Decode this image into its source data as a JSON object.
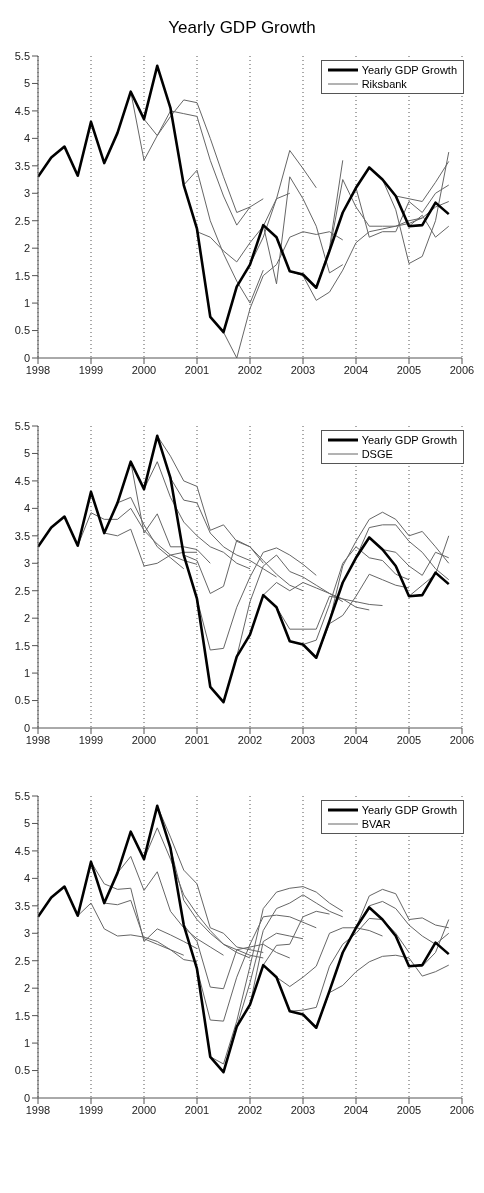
{
  "chart_data": [
    {
      "type": "line",
      "title": "Yearly GDP Growth",
      "xlim": [
        1998,
        2006
      ],
      "xticks": [
        1998,
        1999,
        2000,
        2001,
        2002,
        2003,
        2004,
        2005,
        2006
      ],
      "ylim": [
        0,
        5.5
      ],
      "yticks": [
        0,
        0.5,
        1,
        1.5,
        2,
        2.5,
        3,
        3.5,
        4,
        4.5,
        5,
        5.5
      ],
      "grid": "x",
      "legend": "top right",
      "series": [
        {
          "name": "Yearly GDP Growth",
          "color": "#000000",
          "x": [
            1998,
            1998.25,
            1998.5,
            1998.75,
            1999,
            1999.25,
            1999.5,
            1999.75,
            2000,
            2000.25,
            2000.5,
            2000.75,
            2001,
            2001.25,
            2001.5,
            2001.75,
            2002,
            2002.25,
            2002.5,
            2002.75,
            2003,
            2003.25,
            2003.5,
            2003.75,
            2004,
            2004.25,
            2004.5,
            2004.75,
            2005,
            2005.25,
            2005.5,
            2005.75
          ],
          "values": [
            3.3,
            3.65,
            3.85,
            3.32,
            4.3,
            3.55,
            4.1,
            4.85,
            4.35,
            5.32,
            4.55,
            3.15,
            2.35,
            0.75,
            0.47,
            1.3,
            1.7,
            2.42,
            2.2,
            1.58,
            1.52,
            1.28,
            1.95,
            2.65,
            3.1,
            3.47,
            3.25,
            2.95,
            2.4,
            2.42,
            2.83,
            2.62
          ]
        },
        {
          "name": "Riksbank",
          "color": "#666666",
          "x": [
            2000,
            2000.25,
            2000.5,
            2000.75,
            2001,
            2001.25,
            2001.5,
            2001.75,
            2002,
            2002.25
          ],
          "values": [
            4.35,
            4.05,
            4.4,
            4.7,
            4.65,
            4.0,
            3.3,
            2.65,
            2.75,
            2.9
          ]
        },
        {
          "color": "#666666",
          "x": [
            1999.75,
            2000,
            2000.25,
            2000.5,
            2000.75,
            2001,
            2001.25,
            2001.5,
            2001.75,
            2002
          ],
          "values": [
            4.85,
            3.6,
            4.05,
            4.5,
            4.45,
            4.4,
            3.6,
            2.95,
            2.42,
            2.75
          ]
        },
        {
          "color": "#666666",
          "x": [
            2000.75,
            2001,
            2001.25,
            2001.5,
            2001.75,
            2002,
            2002.25
          ],
          "values": [
            3.15,
            3.42,
            2.5,
            1.9,
            1.4,
            1.0,
            1.6
          ]
        },
        {
          "color": "#666666",
          "x": [
            2001,
            2001.25,
            2001.5,
            2001.75,
            2002,
            2002.25,
            2002.5,
            2002.75
          ],
          "values": [
            2.3,
            2.2,
            1.95,
            1.75,
            2.1,
            2.4,
            2.9,
            3.0
          ]
        },
        {
          "color": "#666666",
          "x": [
            2001.5,
            2001.75,
            2002,
            2002.25,
            2002.5,
            2002.75,
            2003,
            2003.25,
            2003.5,
            2003.75
          ],
          "values": [
            0.47,
            0.0,
            0.9,
            1.5,
            1.7,
            2.2,
            2.3,
            2.25,
            2.3,
            2.15
          ]
        },
        {
          "color": "#666666",
          "x": [
            2002,
            2002.25,
            2002.5,
            2002.75,
            2003,
            2003.25
          ],
          "values": [
            1.7,
            2.2,
            2.9,
            3.78,
            3.45,
            3.1
          ]
        },
        {
          "color": "#666666",
          "x": [
            2002.25,
            2002.5,
            2002.75,
            2003,
            2003.25,
            2003.5,
            2003.75
          ],
          "values": [
            2.42,
            1.35,
            3.3,
            2.9,
            2.4,
            1.55,
            1.7
          ]
        },
        {
          "color": "#666666",
          "x": [
            2002.75,
            2003,
            2003.25,
            2003.5,
            2003.75,
            2004,
            2004.25,
            2004.5,
            2004.75,
            2005,
            2005.25,
            2005.5,
            2005.75
          ],
          "values": [
            1.58,
            1.5,
            1.05,
            1.2,
            1.6,
            2.1,
            2.3,
            2.35,
            2.4,
            2.45,
            2.55,
            2.75,
            2.85
          ]
        },
        {
          "color": "#666666",
          "x": [
            2003.25,
            2003.5,
            2003.75
          ],
          "values": [
            1.28,
            2.0,
            3.6
          ]
        },
        {
          "color": "#666666",
          "x": [
            2003.5,
            2003.75,
            2004,
            2004.25,
            2004.5,
            2004.75,
            2005,
            2005.25
          ],
          "values": [
            1.95,
            3.25,
            2.75,
            2.4,
            2.4,
            2.4,
            2.5,
            2.55
          ]
        },
        {
          "color": "#666666",
          "x": [
            2004,
            2004.25,
            2004.5,
            2004.75,
            2005,
            2005.25,
            2005.5,
            2005.75
          ],
          "values": [
            3.1,
            2.2,
            2.3,
            2.3,
            2.85,
            2.65,
            3.0,
            3.15
          ]
        },
        {
          "color": "#666666",
          "x": [
            2004.5,
            2004.75,
            2005,
            2005.25,
            2005.5,
            2005.75
          ],
          "values": [
            3.25,
            2.7,
            1.72,
            1.85,
            2.5,
            3.75
          ]
        },
        {
          "color": "#666666",
          "x": [
            2004.75,
            2005,
            2005.25,
            2005.5,
            2005.75
          ],
          "values": [
            2.95,
            2.9,
            2.85,
            3.2,
            3.58
          ]
        },
        {
          "color": "#666666",
          "x": [
            2005,
            2005.25,
            2005.5,
            2005.75
          ],
          "values": [
            2.4,
            2.6,
            2.2,
            2.4
          ]
        }
      ]
    },
    {
      "type": "line",
      "xlim": [
        1998,
        2006
      ],
      "xticks": [
        1998,
        1999,
        2000,
        2001,
        2002,
        2003,
        2004,
        2005,
        2006
      ],
      "ylim": [
        0,
        5.5
      ],
      "yticks": [
        0,
        0.5,
        1,
        1.5,
        2,
        2.5,
        3,
        3.5,
        4,
        4.5,
        5,
        5.5
      ],
      "grid": "x",
      "legend": "top right",
      "series": [
        {
          "name": "Yearly GDP Growth",
          "color": "#000000",
          "x": [
            1998,
            1998.25,
            1998.5,
            1998.75,
            1999,
            1999.25,
            1999.5,
            1999.75,
            2000,
            2000.25,
            2000.5,
            2000.75,
            2001,
            2001.25,
            2001.5,
            2001.75,
            2002,
            2002.25,
            2002.5,
            2002.75,
            2003,
            2003.25,
            2003.5,
            2003.75,
            2004,
            2004.25,
            2004.5,
            2004.75,
            2005,
            2005.25,
            2005.5,
            2005.75
          ],
          "values": [
            3.3,
            3.65,
            3.85,
            3.32,
            4.3,
            3.55,
            4.1,
            4.85,
            4.35,
            5.32,
            4.55,
            3.15,
            2.35,
            0.75,
            0.47,
            1.3,
            1.7,
            2.42,
            2.2,
            1.58,
            1.52,
            1.28,
            1.95,
            2.65,
            3.1,
            3.47,
            3.25,
            2.95,
            2.4,
            2.42,
            2.83,
            2.62
          ]
        },
        {
          "name": "DSGE",
          "color": "#666666",
          "x": [
            1998.75,
            1999,
            1999.25,
            1999.5,
            1999.75,
            2000,
            2000.25,
            2000.5,
            2000.75,
            2001
          ],
          "values": [
            3.32,
            3.92,
            3.8,
            3.8,
            4.0,
            3.6,
            3.35,
            3.15,
            3.05,
            2.98
          ]
        },
        {
          "color": "#666666",
          "x": [
            1999.25,
            1999.5,
            1999.75,
            2000,
            2000.25,
            2000.5,
            2000.75
          ],
          "values": [
            3.55,
            4.1,
            4.2,
            3.7,
            3.3,
            3.1,
            2.9
          ]
        },
        {
          "color": "#666666",
          "x": [
            1999.25,
            1999.5,
            1999.75,
            2000,
            2000.25,
            2000.5,
            2000.75,
            2001
          ],
          "values": [
            3.55,
            3.5,
            3.62,
            2.95,
            3.0,
            3.15,
            3.2,
            3.2
          ]
        },
        {
          "color": "#666666",
          "x": [
            1999.75,
            2000,
            2000.25,
            2000.5,
            2000.75,
            2001,
            2001.25
          ],
          "values": [
            4.85,
            3.55,
            3.9,
            3.3,
            3.3,
            3.25,
            3.0
          ]
        },
        {
          "color": "#666666",
          "x": [
            2000,
            2000.25,
            2000.5,
            2000.75,
            2001,
            2001.25,
            2001.5,
            2001.75,
            2002
          ],
          "values": [
            4.35,
            4.85,
            4.2,
            3.75,
            3.5,
            3.3,
            3.2,
            3.0,
            2.9
          ]
        },
        {
          "color": "#666666",
          "x": [
            2000.25,
            2000.5,
            2000.75,
            2001,
            2001.25,
            2001.5,
            2001.75,
            2002,
            2002.25
          ],
          "values": [
            5.32,
            4.95,
            4.5,
            4.4,
            3.6,
            3.7,
            3.4,
            3.3,
            3.0
          ]
        },
        {
          "color": "#666666",
          "x": [
            2000.5,
            2000.75,
            2001,
            2001.25,
            2001.5,
            2001.75,
            2002,
            2002.25,
            2002.5
          ],
          "values": [
            4.55,
            4.15,
            4.1,
            3.55,
            3.3,
            3.15,
            3.05,
            2.9,
            2.75
          ]
        },
        {
          "color": "#666666",
          "x": [
            2000.75,
            2001,
            2001.25,
            2001.5,
            2001.75,
            2002,
            2002.25,
            2002.5,
            2002.75,
            2003
          ],
          "values": [
            3.15,
            3.05,
            2.45,
            2.58,
            3.42,
            3.3,
            3.05,
            2.8,
            2.6,
            2.5
          ]
        },
        {
          "color": "#666666",
          "x": [
            2001,
            2001.25,
            2001.5,
            2001.75,
            2002,
            2002.25,
            2002.5,
            2002.75,
            2003,
            2003.25
          ],
          "values": [
            2.35,
            1.42,
            1.45,
            2.2,
            2.75,
            3.2,
            3.28,
            3.15,
            2.98,
            2.78
          ]
        },
        {
          "color": "#666666",
          "x": [
            2001.5,
            2001.75,
            2002,
            2002.25,
            2002.5,
            2002.75,
            2003,
            2003.25,
            2003.5,
            2003.75
          ],
          "values": [
            0.47,
            1.3,
            2.3,
            2.95,
            3.15,
            2.85,
            2.75,
            2.6,
            2.45,
            2.3
          ]
        },
        {
          "color": "#666666",
          "x": [
            2002.25,
            2002.5,
            2002.75,
            2003,
            2003.25,
            2003.5,
            2003.75,
            2004,
            2004.25
          ],
          "values": [
            2.42,
            2.65,
            2.5,
            2.65,
            2.55,
            2.45,
            2.35,
            2.2,
            2.15
          ]
        },
        {
          "color": "#666666",
          "x": [
            2002.5,
            2002.75,
            2003,
            2003.25,
            2003.5,
            2003.75,
            2004,
            2004.25,
            2004.5
          ],
          "values": [
            2.2,
            1.8,
            1.8,
            1.8,
            2.4,
            2.35,
            2.3,
            2.25,
            2.23
          ]
        },
        {
          "color": "#666666",
          "x": [
            2003,
            2003.25,
            2003.5,
            2003.75,
            2004,
            2004.25,
            2004.5,
            2004.75,
            2005
          ],
          "values": [
            1.52,
            1.6,
            2.25,
            3.0,
            3.3,
            3.1,
            3.05,
            2.8,
            2.7
          ]
        },
        {
          "color": "#666666",
          "x": [
            2003.25,
            2003.5,
            2003.75,
            2004,
            2004.25,
            2004.5,
            2004.75,
            2005
          ],
          "values": [
            1.28,
            1.9,
            2.05,
            2.4,
            2.8,
            2.7,
            2.6,
            2.55
          ]
        },
        {
          "color": "#666666",
          "x": [
            2003.5,
            2003.75,
            2004,
            2004.25,
            2004.5,
            2004.75,
            2005,
            2005.25,
            2005.5,
            2005.75
          ],
          "values": [
            1.95,
            2.95,
            3.4,
            3.8,
            3.93,
            3.8,
            3.5,
            3.58,
            3.3,
            3.0
          ]
        },
        {
          "color": "#666666",
          "x": [
            2004,
            2004.25,
            2004.5,
            2004.75,
            2005,
            2005.25,
            2005.5,
            2005.75
          ],
          "values": [
            3.1,
            3.65,
            3.7,
            3.7,
            3.4,
            3.2,
            2.9,
            2.7
          ]
        },
        {
          "color": "#666666",
          "x": [
            2004.5,
            2004.75,
            2005,
            2005.25,
            2005.5,
            2005.75
          ],
          "values": [
            3.25,
            3.2,
            2.95,
            2.78,
            3.2,
            3.1
          ]
        },
        {
          "color": "#666666",
          "x": [
            2005,
            2005.25,
            2005.5,
            2005.75
          ],
          "values": [
            2.4,
            2.6,
            2.8,
            3.5
          ]
        }
      ]
    },
    {
      "type": "line",
      "xlim": [
        1998,
        2006
      ],
      "xticks": [
        1998,
        1999,
        2000,
        2001,
        2002,
        2003,
        2004,
        2005,
        2006
      ],
      "ylim": [
        0,
        5.5
      ],
      "yticks": [
        0,
        0.5,
        1,
        1.5,
        2,
        2.5,
        3,
        3.5,
        4,
        4.5,
        5,
        5.5
      ],
      "grid": "x",
      "legend": "top right",
      "series": [
        {
          "name": "Yearly GDP Growth",
          "color": "#000000",
          "x": [
            1998,
            1998.25,
            1998.5,
            1998.75,
            1999,
            1999.25,
            1999.5,
            1999.75,
            2000,
            2000.25,
            2000.5,
            2000.75,
            2001,
            2001.25,
            2001.5,
            2001.75,
            2002,
            2002.25,
            2002.5,
            2002.75,
            2003,
            2003.25,
            2003.5,
            2003.75,
            2004,
            2004.25,
            2004.5,
            2004.75,
            2005,
            2005.25,
            2005.5,
            2005.75
          ],
          "values": [
            3.3,
            3.65,
            3.85,
            3.32,
            4.3,
            3.55,
            4.1,
            4.85,
            4.35,
            5.32,
            4.55,
            3.15,
            2.35,
            0.75,
            0.47,
            1.3,
            1.7,
            2.42,
            2.2,
            1.58,
            1.52,
            1.28,
            1.95,
            2.65,
            3.1,
            3.47,
            3.25,
            2.95,
            2.4,
            2.42,
            2.83,
            2.62
          ]
        },
        {
          "name": "BVAR",
          "color": "#666666",
          "x": [
            1998.75,
            1999,
            1999.25,
            1999.5,
            1999.75,
            2000,
            2000.25,
            2000.5,
            2000.75,
            2001
          ],
          "values": [
            3.32,
            3.55,
            3.08,
            2.95,
            2.97,
            2.93,
            2.85,
            2.7,
            2.52,
            2.48
          ]
        },
        {
          "color": "#666666",
          "x": [
            1999,
            1999.25,
            1999.5,
            1999.75,
            2000,
            2000.25,
            2000.5,
            2000.75,
            2001
          ],
          "values": [
            4.3,
            3.9,
            3.8,
            3.82,
            2.85,
            3.08,
            2.97,
            2.85,
            2.72
          ]
        },
        {
          "color": "#666666",
          "x": [
            1999.25,
            1999.5,
            1999.75,
            2000,
            2000.25,
            2000.5,
            2000.75
          ],
          "values": [
            3.55,
            3.52,
            3.6,
            2.9,
            2.8,
            2.7,
            2.6
          ]
        },
        {
          "color": "#666666",
          "x": [
            1999.5,
            1999.75,
            2000,
            2000.25,
            2000.5,
            2000.75,
            2001,
            2001.25,
            2001.5
          ],
          "values": [
            4.1,
            4.4,
            3.78,
            4.12,
            3.4,
            3.1,
            2.9,
            2.75,
            2.6
          ]
        },
        {
          "color": "#666666",
          "x": [
            2000,
            2000.25,
            2000.5,
            2000.75,
            2001,
            2001.25,
            2001.5,
            2001.75,
            2002
          ],
          "values": [
            4.35,
            4.92,
            4.35,
            3.7,
            3.35,
            3.05,
            2.8,
            2.65,
            2.55
          ]
        },
        {
          "color": "#666666",
          "x": [
            2000.25,
            2000.5,
            2000.75,
            2001,
            2001.25,
            2001.5,
            2001.75,
            2002,
            2002.25
          ],
          "values": [
            5.32,
            4.75,
            4.15,
            3.9,
            3.1,
            3.0,
            2.75,
            2.7,
            2.65
          ]
        },
        {
          "color": "#666666",
          "x": [
            2000.5,
            2000.75,
            2001,
            2001.25,
            2001.5,
            2001.75,
            2002,
            2002.25
          ],
          "values": [
            4.55,
            3.6,
            3.25,
            3.0,
            2.8,
            2.7,
            2.6,
            2.55
          ]
        },
        {
          "color": "#666666",
          "x": [
            2000.75,
            2001,
            2001.25,
            2001.5,
            2001.75,
            2002,
            2002.25,
            2002.5,
            2002.75
          ],
          "values": [
            3.15,
            2.85,
            2.02,
            1.99,
            2.7,
            2.75,
            2.8,
            2.65,
            2.55
          ]
        },
        {
          "color": "#666666",
          "x": [
            2001,
            2001.25,
            2001.5,
            2001.75,
            2002,
            2002.25,
            2002.5,
            2002.75,
            2003,
            2003.25
          ],
          "values": [
            2.35,
            1.42,
            1.4,
            2.2,
            2.8,
            3.3,
            3.33,
            3.3,
            3.2,
            3.1
          ]
        },
        {
          "color": "#666666",
          "x": [
            2001.25,
            2001.5,
            2001.75,
            2002,
            2002.25,
            2002.5,
            2002.75,
            2003,
            2003.25,
            2003.5,
            2003.75
          ],
          "values": [
            0.75,
            0.62,
            1.4,
            2.4,
            3.45,
            3.75,
            3.82,
            3.85,
            3.75,
            3.55,
            3.4
          ]
        },
        {
          "color": "#666666",
          "x": [
            2001.75,
            2002,
            2002.25,
            2002.5,
            2002.75,
            2003,
            2003.25,
            2003.5,
            2003.75
          ],
          "values": [
            1.3,
            2.1,
            3.05,
            3.45,
            3.55,
            3.7,
            3.55,
            3.4,
            3.3
          ]
        },
        {
          "color": "#666666",
          "x": [
            2002,
            2002.25,
            2002.5,
            2002.75,
            2003
          ],
          "values": [
            1.7,
            2.85,
            3.0,
            2.95,
            2.9
          ]
        },
        {
          "color": "#666666",
          "x": [
            2002.25,
            2002.5,
            2002.75,
            2003,
            2003.25,
            2003.5
          ],
          "values": [
            2.42,
            2.78,
            2.8,
            3.3,
            3.4,
            3.35
          ]
        },
        {
          "color": "#666666",
          "x": [
            2002.5,
            2002.75,
            2003,
            2003.25,
            2003.5,
            2003.75,
            2004,
            2004.25,
            2004.5
          ],
          "values": [
            2.2,
            2.03,
            2.2,
            2.4,
            3.0,
            3.1,
            3.1,
            3.05,
            2.95
          ]
        },
        {
          "color": "#666666",
          "x": [
            2002.75,
            2003,
            2003.25,
            2003.5,
            2003.75,
            2004,
            2004.25,
            2004.5,
            2004.75,
            2005
          ],
          "values": [
            1.58,
            1.6,
            1.65,
            2.4,
            2.8,
            3.0,
            3.27,
            3.25,
            3.0,
            2.65
          ]
        },
        {
          "color": "#666666",
          "x": [
            2003.25,
            2003.5,
            2003.75,
            2004,
            2004.25,
            2004.5,
            2004.75,
            2005,
            2005.25,
            2005.5,
            2005.75
          ],
          "values": [
            1.28,
            1.92,
            2.05,
            2.3,
            2.48,
            2.58,
            2.6,
            2.55,
            2.22,
            2.3,
            2.42
          ]
        },
        {
          "color": "#666666",
          "x": [
            2003.75,
            2004,
            2004.25,
            2004.5,
            2004.75,
            2005,
            2005.25,
            2005.5,
            2005.75
          ],
          "values": [
            2.65,
            3.1,
            3.68,
            3.8,
            3.72,
            3.25,
            3.28,
            3.15,
            3.1
          ]
        },
        {
          "color": "#666666",
          "x": [
            2004,
            2004.25,
            2004.5,
            2004.75,
            2005,
            2005.25,
            2005.5,
            2005.75
          ],
          "values": [
            3.1,
            3.5,
            3.58,
            3.45,
            3.15,
            2.95,
            2.8,
            3.0
          ]
        },
        {
          "color": "#666666",
          "x": [
            2005,
            2005.25,
            2005.5,
            2005.75
          ],
          "values": [
            2.4,
            2.4,
            2.65,
            3.25
          ]
        }
      ]
    }
  ]
}
